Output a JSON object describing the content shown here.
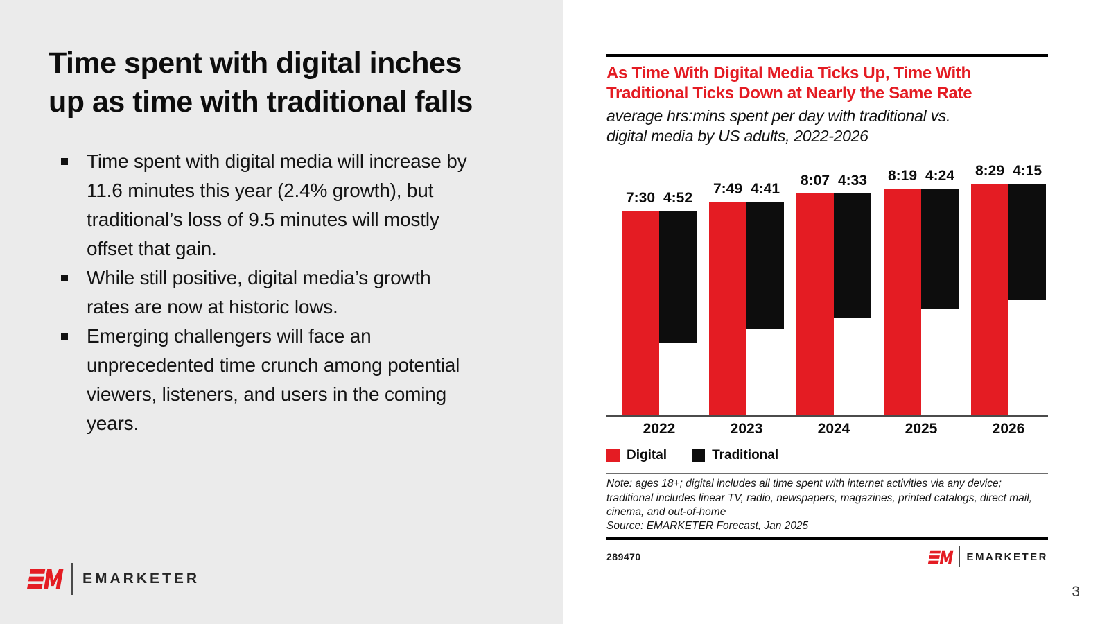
{
  "slide": {
    "title": "Time spent with digital inches\nup as time with traditional falls",
    "bullets": [
      "Time spent with digital media will increase by\n11.6 minutes this year (2.4% growth), but\ntraditional’s loss of 9.5 minutes will mostly\noffset that gain.",
      "While still positive, digital media’s growth\nrates are now at historic lows.",
      "Emerging challengers will face an\nunprecedented time crunch among potential\nviewers, listeners, and users in the coming\nyears."
    ],
    "page_number": "3"
  },
  "branding": {
    "logo_text": "EMARKETER",
    "brand_red": "#E41C23"
  },
  "chart_card": {
    "title": "As Time With Digital Media Ticks Up, Time With\nTraditional Ticks Down at Nearly the Same Rate",
    "subtitle": "average hrs:mins spent per day with traditional vs.\ndigital media by US adults, 2022-2026",
    "note": "Note: ages 18+; digital includes all time spent with internet activities via any device;\ntraditional includes linear TV, radio, newspapers, magazines, printed catalogs, direct mail,\ncinema, and out-of-home",
    "source": "Source: EMARKETER Forecast, Jan 2025",
    "chart_id": "289470"
  },
  "chart_data": {
    "type": "bar",
    "categories": [
      "2022",
      "2023",
      "2024",
      "2025",
      "2026"
    ],
    "series": [
      {
        "name": "Digital",
        "color": "#E41C23",
        "labels": [
          "7:30",
          "7:49",
          "8:07",
          "8:19",
          "8:29"
        ],
        "values_minutes": [
          450,
          469,
          487,
          499,
          509
        ]
      },
      {
        "name": "Traditional",
        "color": "#0D0D0D",
        "labels": [
          "4:52",
          "4:41",
          "4:33",
          "4:24",
          "4:15"
        ],
        "values_minutes": [
          292,
          281,
          273,
          264,
          255
        ]
      }
    ],
    "title": "As Time With Digital Media Ticks Up, Time With Traditional Ticks Down at Nearly the Same Rate",
    "xlabel": "",
    "ylabel": "average hrs:mins spent per day",
    "ylim": [
      0,
      540
    ],
    "grid": false,
    "legend_position": "bottom-left",
    "value_label_format": "h:mm above each bar"
  }
}
